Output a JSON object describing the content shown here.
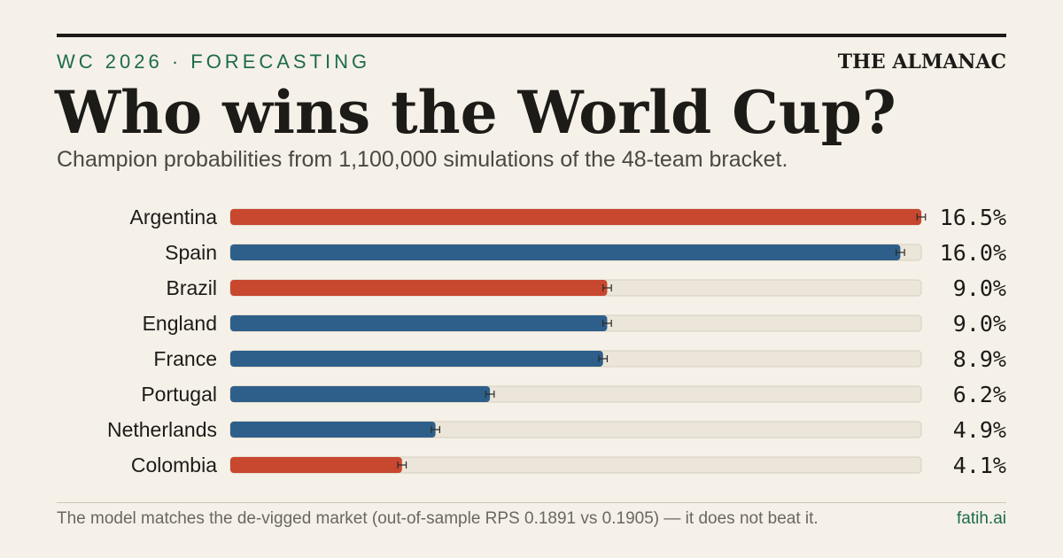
{
  "chart_data": {
    "type": "bar",
    "orientation": "horizontal",
    "kicker": "WC 2026 · FORECASTING",
    "brand": "THE ALMANAC",
    "title": "Who wins the World Cup?",
    "subtitle": "Champion probabilities from 1,100,000 simulations of the 48-team bracket.",
    "categories": [
      "Argentina",
      "Spain",
      "Brazil",
      "England",
      "France",
      "Portugal",
      "Netherlands",
      "Colombia"
    ],
    "values": [
      16.5,
      16.0,
      9.0,
      9.0,
      8.9,
      6.2,
      4.9,
      4.1
    ],
    "value_labels": [
      "16.5%",
      "16.0%",
      "9.0%",
      "9.0%",
      "8.9%",
      "6.2%",
      "4.9%",
      "4.1%"
    ],
    "errors": [
      0.1,
      0.1,
      0.1,
      0.1,
      0.1,
      0.1,
      0.1,
      0.1
    ],
    "colors": [
      "#c8472f",
      "#2e5f8a",
      "#c8472f",
      "#2e5f8a",
      "#2e5f8a",
      "#2e5f8a",
      "#2e5f8a",
      "#c8472f"
    ],
    "xlim": [
      0,
      16.5
    ],
    "footnote": "The model matches the de-vigged market (out-of-sample RPS 0.1891 vs 0.1905) — it does not beat it.",
    "credit": "fatih.ai"
  }
}
